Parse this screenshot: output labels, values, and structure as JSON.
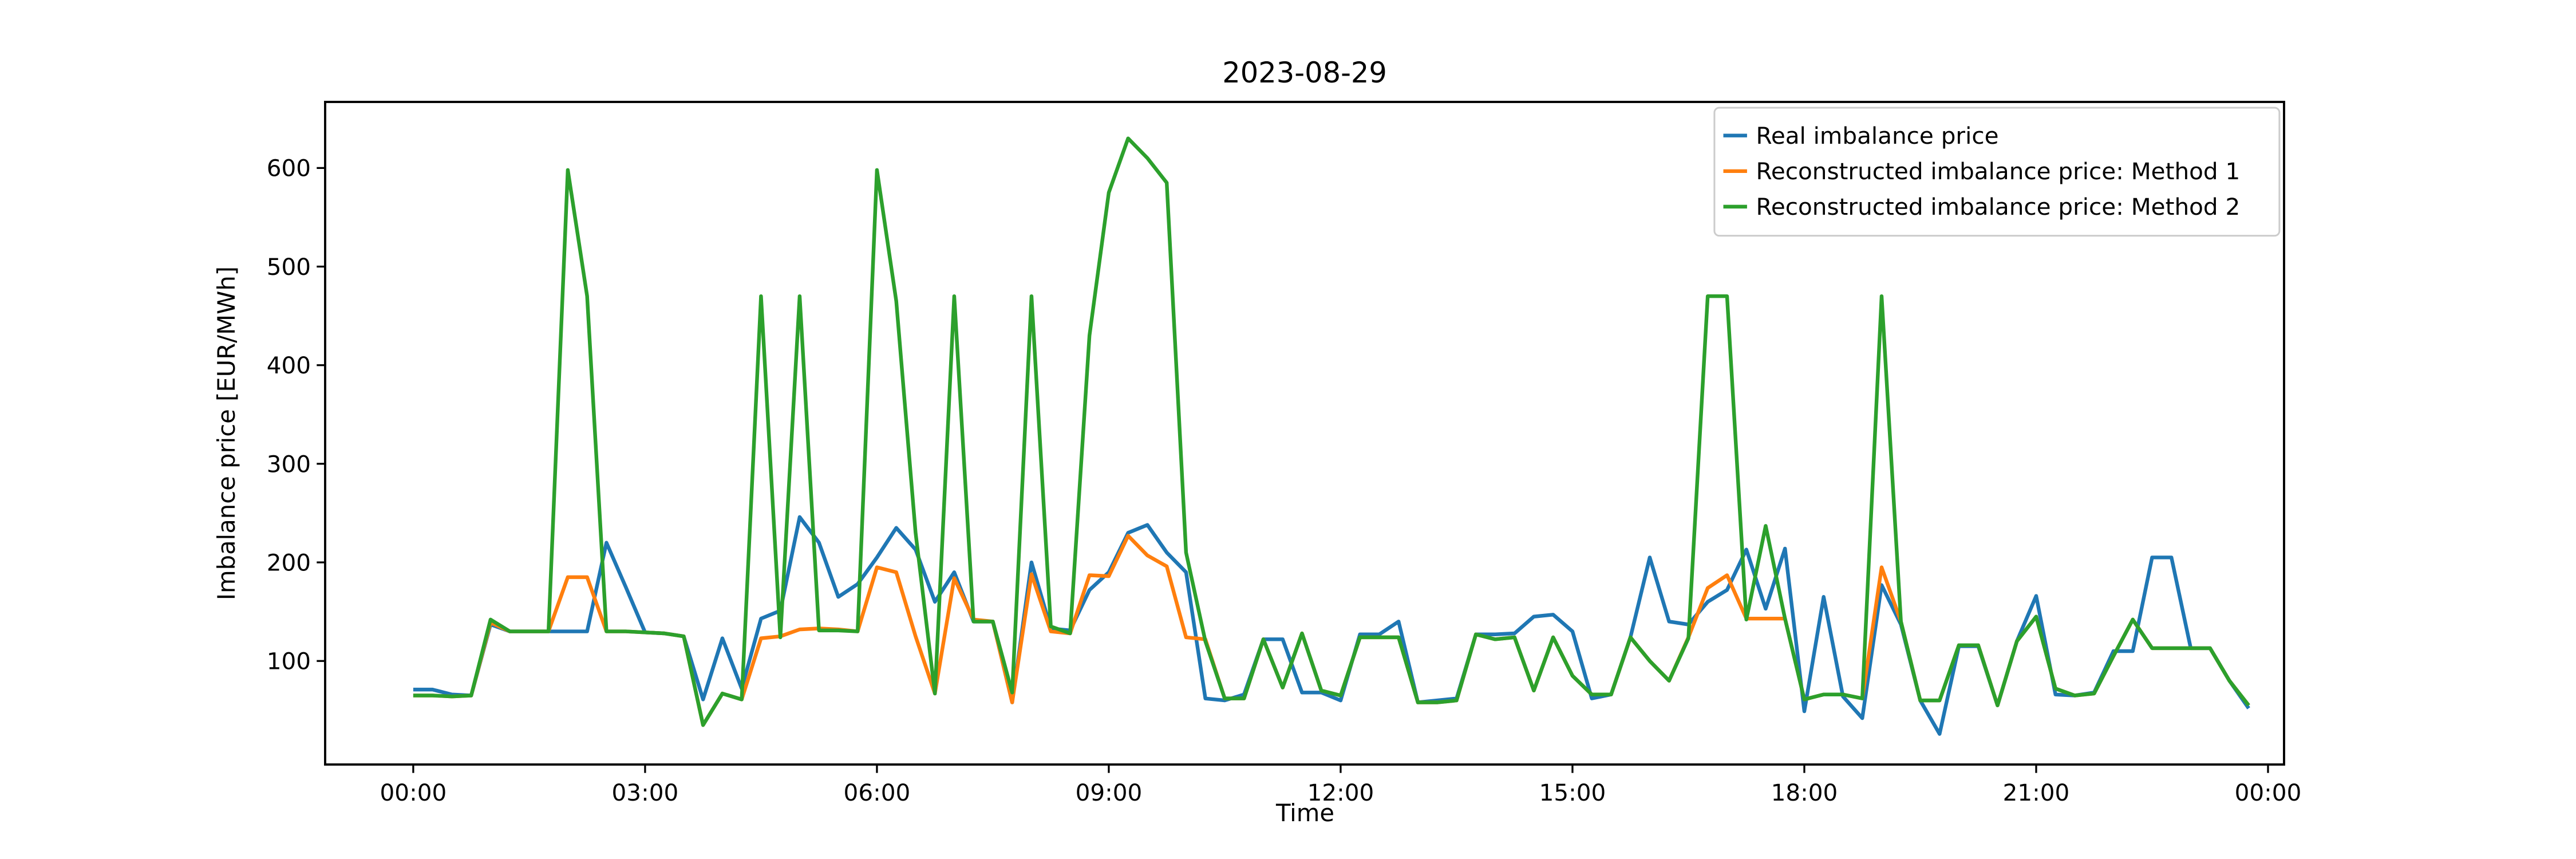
{
  "chart": {
    "title": "2023-08-29",
    "xlabel": "Time",
    "ylabel": "Imbalance price [EUR/MWh]",
    "background_color": "#ffffff",
    "spine_color": "#000000"
  },
  "legend": {
    "position": "upper right",
    "border_color": "#cccccc",
    "fill_color": "#ffffff",
    "entries": [
      {
        "label": "Real imbalance price",
        "color": "#1f77b4"
      },
      {
        "label": "Reconstructed imbalance price: Method 1",
        "color": "#ff7f0e"
      },
      {
        "label": "Reconstructed imbalance price: Method 2",
        "color": "#2ca02c"
      }
    ]
  },
  "chart_data": {
    "type": "line",
    "title": "2023-08-29",
    "xlabel": "Time",
    "ylabel": "Imbalance price [EUR/MWh]",
    "grid": false,
    "legend_position": "upper right",
    "x_tick_labels": [
      "00:00",
      "03:00",
      "06:00",
      "09:00",
      "12:00",
      "15:00",
      "18:00",
      "21:00",
      "00:00"
    ],
    "x_tick_positions": [
      0,
      12,
      24,
      36,
      48,
      60,
      72,
      84,
      96
    ],
    "y_ticks": [
      100,
      200,
      300,
      400,
      500,
      600
    ],
    "ylim": [
      -5,
      667
    ],
    "xlim": [
      -4.56,
      96.83
    ],
    "x": [
      "00:00",
      "00:15",
      "00:30",
      "00:45",
      "01:00",
      "01:15",
      "01:30",
      "01:45",
      "02:00",
      "02:15",
      "02:30",
      "02:45",
      "03:00",
      "03:15",
      "03:30",
      "03:45",
      "04:00",
      "04:15",
      "04:30",
      "04:45",
      "05:00",
      "05:15",
      "05:30",
      "05:45",
      "06:00",
      "06:15",
      "06:30",
      "06:45",
      "07:00",
      "07:15",
      "07:30",
      "07:45",
      "08:00",
      "08:15",
      "08:30",
      "08:45",
      "09:00",
      "09:15",
      "09:30",
      "09:45",
      "10:00",
      "10:15",
      "10:30",
      "10:45",
      "11:00",
      "11:15",
      "11:30",
      "11:45",
      "12:00",
      "12:15",
      "12:30",
      "12:45",
      "13:00",
      "13:15",
      "13:30",
      "13:45",
      "14:00",
      "14:15",
      "14:30",
      "14:45",
      "15:00",
      "15:15",
      "15:30",
      "15:45",
      "16:00",
      "16:15",
      "16:30",
      "16:45",
      "17:00",
      "17:15",
      "17:30",
      "17:45",
      "18:00",
      "18:15",
      "18:30",
      "18:45",
      "19:00",
      "19:15",
      "19:30",
      "19:45",
      "20:00",
      "20:15",
      "20:30",
      "20:45",
      "21:00",
      "21:15",
      "21:30",
      "21:45",
      "22:00",
      "22:15",
      "22:30",
      "22:45",
      "23:00",
      "23:15",
      "23:30",
      "23:45"
    ],
    "series": [
      {
        "name": "Real imbalance price",
        "color": "#1f77b4",
        "values": [
          71,
          71,
          66,
          65,
          137,
          130,
          130,
          130,
          130,
          130,
          220,
          175,
          129,
          128,
          125,
          61,
          123,
          72,
          143,
          151,
          246,
          220,
          165,
          178,
          205,
          235,
          213,
          160,
          190,
          140,
          140,
          58,
          200,
          133,
          131,
          172,
          190,
          230,
          238,
          210,
          190,
          62,
          60,
          66,
          122,
          122,
          68,
          68,
          60,
          127,
          127,
          140,
          58,
          60,
          62,
          127,
          127,
          128,
          145,
          147,
          130,
          62,
          66,
          124,
          205,
          140,
          137,
          160,
          172,
          213,
          153,
          214,
          49,
          165,
          64,
          42,
          177,
          137,
          60,
          26,
          115,
          115,
          55,
          120,
          166,
          66,
          65,
          68,
          110,
          110,
          205,
          205,
          113,
          113,
          80,
          52
        ]
      },
      {
        "name": "Reconstructed imbalance price: Method 1",
        "color": "#ff7f0e",
        "values": [
          65,
          65,
          64,
          65,
          139,
          130,
          130,
          130,
          185,
          185,
          130,
          130,
          129,
          128,
          125,
          35,
          67,
          61,
          123,
          125,
          132,
          133,
          132,
          130,
          195,
          190,
          125,
          67,
          184,
          142,
          140,
          58,
          188,
          130,
          128,
          187,
          186,
          227,
          207,
          196,
          124,
          122,
          62,
          62,
          122,
          73,
          128,
          70,
          65,
          124,
          124,
          124,
          58,
          58,
          60,
          127,
          122,
          124,
          70,
          124,
          85,
          66,
          66,
          124,
          100,
          80,
          124,
          174,
          187,
          143,
          143,
          143,
          61,
          66,
          66,
          62,
          195,
          140,
          60,
          60,
          116,
          116,
          55,
          120,
          145,
          72,
          65,
          67,
          105,
          142,
          113,
          113,
          113,
          113,
          80,
          55
        ]
      },
      {
        "name": "Reconstructed imbalance price: Method 2",
        "color": "#2ca02c",
        "values": [
          65,
          65,
          64,
          65,
          142,
          130,
          130,
          130,
          598,
          470,
          130,
          130,
          129,
          128,
          125,
          35,
          67,
          61,
          470,
          124,
          470,
          131,
          131,
          130,
          598,
          465,
          230,
          67,
          470,
          140,
          140,
          68,
          470,
          135,
          128,
          430,
          575,
          630,
          610,
          585,
          210,
          120,
          62,
          62,
          122,
          73,
          128,
          70,
          65,
          124,
          124,
          124,
          58,
          58,
          60,
          127,
          122,
          124,
          70,
          124,
          85,
          66,
          66,
          124,
          100,
          80,
          123,
          470,
          470,
          142,
          237,
          143,
          61,
          66,
          66,
          62,
          470,
          140,
          60,
          60,
          116,
          116,
          55,
          120,
          145,
          72,
          65,
          67,
          105,
          142,
          113,
          113,
          113,
          113,
          80,
          55
        ]
      }
    ]
  }
}
